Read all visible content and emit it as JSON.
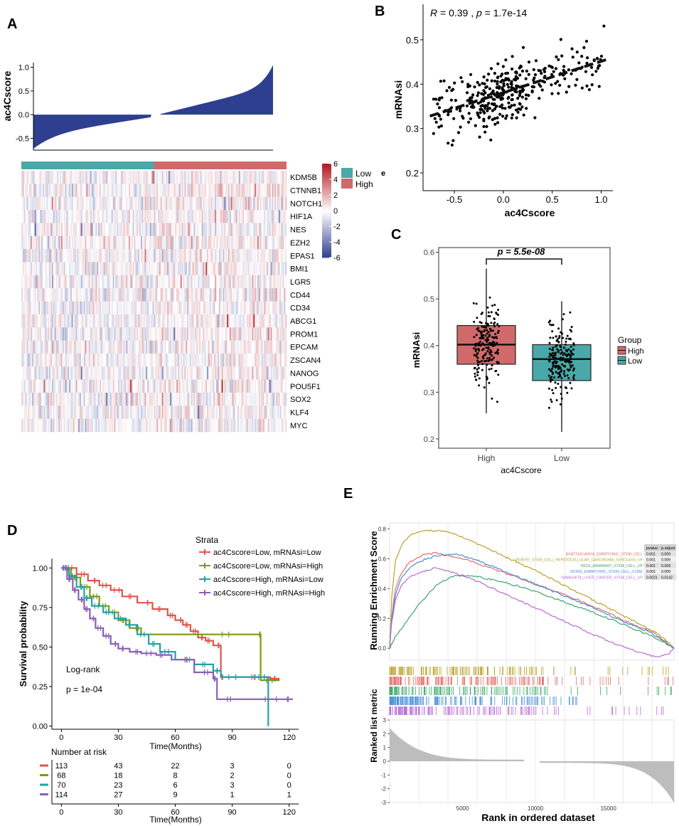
{
  "panel_labels": {
    "a": "A",
    "b": "B",
    "c": "C",
    "d": "D",
    "e": "E"
  },
  "chart_data": [
    {
      "panel": "A-top",
      "type": "bar",
      "ylabel": "ac4Cscore",
      "ylim": [
        -0.75,
        1.1
      ],
      "yticks": [
        "1.0",
        "0.5",
        "0.0",
        "-0.5"
      ],
      "sorted_profile": {
        "n_samples": 380,
        "min": -0.72,
        "max": 1.05,
        "zero_crossing_fraction": 0.52
      },
      "color": "#2e3f8f"
    },
    {
      "panel": "A-heatmap",
      "type": "heatmap",
      "genes": [
        "KDM5B",
        "CTNNB1",
        "NOTCH1",
        "HIF1A",
        "NES",
        "EZH2",
        "EPAS1",
        "BMI1",
        "LGR5",
        "CD44",
        "CD34",
        "ABCG1",
        "PROM1",
        "EPCAM",
        "ZSCAN4",
        "NANOG",
        "POU5F1",
        "SOX2",
        "KLF4",
        "MYC"
      ],
      "groups": [
        {
          "name": "Low",
          "color": "#4aa8a8",
          "fraction": 0.5
        },
        {
          "name": "High",
          "color": "#d06a6a",
          "fraction": 0.5
        }
      ],
      "colorbar_ticks": [
        "6",
        "4",
        "2",
        "0",
        "-2",
        "-4",
        "-6"
      ],
      "colorbar_range": [
        -6,
        6
      ],
      "colors": {
        "low": "#2d3d8f",
        "mid": "#ffffff",
        "high": "#b51a22"
      },
      "stray_label": "e"
    },
    {
      "panel": "B",
      "type": "scatter",
      "annotation": {
        "R": "R",
        "r_text": " = 0.39 ,  ",
        "p": "p",
        "p_text": " = 1.7e-14"
      },
      "xlabel": "ac4Cscore",
      "ylabel": "mRNAsi",
      "xlim": [
        -0.82,
        1.12
      ],
      "ylim": [
        0.16,
        0.58
      ],
      "xticks": [
        -0.5,
        0.0,
        0.5,
        1.0
      ],
      "xtick_labels": [
        "-0.5",
        "0.0",
        "0.5",
        "1.0"
      ],
      "yticks": [
        0.2,
        0.3,
        0.4,
        0.5
      ],
      "ytick_labels": [
        "0.2",
        "0.3",
        "0.4",
        "0.5"
      ],
      "fit_line": {
        "x": [
          -0.75,
          1.05
        ],
        "y": [
          0.328,
          0.455
        ]
      },
      "n_points": 360
    },
    {
      "panel": "C",
      "type": "box",
      "p_label": "p = 5.5e-08",
      "xlabel": "ac4Cscore",
      "ylabel": "mRNAsi",
      "ylim": [
        0.18,
        0.61
      ],
      "yticks": [
        0.2,
        0.3,
        0.4,
        0.5,
        0.6
      ],
      "ytick_labels": [
        "0.2",
        "0.3",
        "0.4",
        "0.5",
        "0.6"
      ],
      "legend_title": "Group",
      "groups": [
        {
          "name": "High",
          "color": "#d06a6a",
          "q1": 0.36,
          "median": 0.402,
          "q3": 0.443,
          "whisker_low": 0.255,
          "whisker_high": 0.565,
          "n": 190
        },
        {
          "name": "Low",
          "color": "#4aa8a8",
          "q1": 0.325,
          "median": 0.371,
          "q3": 0.402,
          "whisker_low": 0.215,
          "whisker_high": 0.495,
          "n": 190
        }
      ]
    },
    {
      "panel": "D",
      "type": "line",
      "subtype": "kaplan-meier",
      "xlabel": "Time(Months)",
      "ylabel": "Survival probability",
      "xlim": [
        -5,
        125
      ],
      "ylim": [
        -0.02,
        1.06
      ],
      "xticks": [
        0,
        30,
        60,
        90,
        120
      ],
      "xtick_labels": [
        "0",
        "30",
        "60",
        "90",
        "120"
      ],
      "yticks": [
        0,
        0.25,
        0.5,
        0.75,
        1.0
      ],
      "ytick_labels": [
        "0.00",
        "0.25",
        "0.50",
        "0.75",
        "1.00"
      ],
      "legend_title": "Strata",
      "logrank_label": "Log-rank",
      "pvalue_label": "p = 1e-04",
      "series": [
        {
          "name": "ac4Cscore=Low, mRNAsi=Low",
          "color": "#e0544b",
          "x": [
            0,
            8,
            14,
            20,
            26,
            32,
            40,
            48,
            56,
            60,
            64,
            68,
            72,
            76,
            80,
            84,
            86,
            110,
            115
          ],
          "y": [
            1.0,
            0.96,
            0.92,
            0.89,
            0.86,
            0.82,
            0.78,
            0.74,
            0.7,
            0.67,
            0.64,
            0.6,
            0.56,
            0.54,
            0.51,
            0.31,
            0.31,
            0.3,
            0.3
          ]
        },
        {
          "name": "ac4Cscore=Low, mRNAsi=High",
          "color": "#7b9a13",
          "x": [
            0,
            5,
            10,
            15,
            20,
            25,
            30,
            36,
            42,
            104,
            105,
            115
          ],
          "y": [
            1.0,
            0.94,
            0.88,
            0.82,
            0.76,
            0.72,
            0.67,
            0.62,
            0.58,
            0.58,
            0.29,
            0.29
          ]
        },
        {
          "name": "ac4Cscore=High, mRNAsi=Low",
          "color": "#1fa3a8",
          "x": [
            0,
            4,
            8,
            12,
            16,
            22,
            28,
            34,
            40,
            46,
            52,
            60,
            70,
            80,
            84,
            100,
            106,
            109
          ],
          "y": [
            1.0,
            0.95,
            0.88,
            0.81,
            0.76,
            0.72,
            0.68,
            0.64,
            0.58,
            0.52,
            0.47,
            0.42,
            0.39,
            0.35,
            0.31,
            0.31,
            0.31,
            0.0
          ]
        },
        {
          "name": "ac4Cscore=High, mRNAsi=High",
          "color": "#8b5fb8",
          "x": [
            0,
            3,
            6,
            9,
            12,
            15,
            18,
            22,
            26,
            30,
            36,
            42,
            50,
            58,
            70,
            80,
            82,
            100,
            118,
            122
          ],
          "y": [
            1.0,
            0.93,
            0.86,
            0.8,
            0.74,
            0.68,
            0.62,
            0.57,
            0.52,
            0.49,
            0.47,
            0.46,
            0.45,
            0.42,
            0.34,
            0.3,
            0.17,
            0.17,
            0.17,
            0.17
          ]
        }
      ],
      "risk_table": {
        "title": "Number at risk",
        "xlabel": "Time(Months)",
        "times": [
          "0",
          "30",
          "60",
          "90",
          "120"
        ],
        "rows": [
          {
            "color": "#e0544b",
            "values": [
              "113",
              "43",
              "22",
              "3",
              "0"
            ]
          },
          {
            "color": "#7b9a13",
            "values": [
              "68",
              "18",
              "8",
              "2",
              "0"
            ]
          },
          {
            "color": "#1fa3a8",
            "values": [
              "70",
              "23",
              "6",
              "3",
              "0"
            ]
          },
          {
            "color": "#8b5fb8",
            "values": [
              "114",
              "27",
              "9",
              "1",
              "1"
            ]
          }
        ]
      }
    },
    {
      "panel": "E",
      "type": "line",
      "subtype": "gsea",
      "ylabel": "Running Enrichment Score",
      "ylabel2": "Ranked list metric",
      "xlabel": "Rank in ordered dataset",
      "xlim": [
        0,
        19500
      ],
      "xticks": [
        5000,
        10000,
        15000
      ],
      "xtick_labels": [
        "5000",
        "10000",
        "15000"
      ],
      "ylim": [
        -0.08,
        0.84
      ],
      "yticks": [
        0.0,
        0.2,
        0.4,
        0.6,
        0.8
      ],
      "ytick_labels": [
        "0.0",
        "0.2",
        "0.4",
        "0.6",
        "0.8"
      ],
      "ylim2": [
        -3,
        3
      ],
      "yticks2": [
        3,
        2,
        1,
        0,
        -1,
        -2,
        -3
      ],
      "ytick_labels2": [
        "3",
        "2",
        "1",
        "0",
        "-1",
        "-2",
        "-3"
      ],
      "table_header": [
        "pvalue",
        "p.adjust"
      ],
      "series": [
        {
          "name": "BHATTACHARYA_EMBRYONIC_STEM_CELL",
          "color": "#e06d6d",
          "pvalue": "0.001",
          "padjust": "0.009",
          "x": [
            0,
            150,
            400,
            800,
            1300,
            1900,
            2500,
            3200,
            4000,
            4600,
            6000,
            8000,
            10000,
            12000,
            14000,
            16000,
            18000,
            19000,
            19500
          ],
          "y": [
            0.0,
            0.22,
            0.4,
            0.5,
            0.57,
            0.61,
            0.63,
            0.64,
            0.62,
            0.61,
            0.57,
            0.5,
            0.43,
            0.36,
            0.28,
            0.19,
            0.11,
            0.04,
            0.0
          ]
        },
        {
          "name": "DESERT_STEM_CELL_HEPATOCELLULAR_CARCINOMA_SUBCLASS_UP",
          "color": "#b8a32a",
          "pvalue": "0.001",
          "padjust": "0.009",
          "x": [
            0,
            150,
            400,
            800,
            1300,
            1900,
            2500,
            3200,
            4000,
            4600,
            6000,
            8000,
            10000,
            12000,
            14000,
            16000,
            18000,
            19000,
            19500
          ],
          "y": [
            0.0,
            0.35,
            0.58,
            0.69,
            0.75,
            0.78,
            0.79,
            0.79,
            0.78,
            0.76,
            0.7,
            0.61,
            0.52,
            0.42,
            0.32,
            0.22,
            0.12,
            0.05,
            0.0
          ]
        },
        {
          "name": "PECE_MAMMARY_STEM_CELL_UP",
          "color": "#3aa86a",
          "pvalue": "0.001",
          "padjust": "0.009",
          "x": [
            0,
            150,
            400,
            800,
            1300,
            1900,
            2500,
            3200,
            4000,
            4600,
            6000,
            8000,
            10000,
            12000,
            14000,
            16000,
            18000,
            19000,
            19500
          ],
          "y": [
            0.0,
            0.03,
            0.08,
            0.13,
            0.2,
            0.28,
            0.35,
            0.42,
            0.47,
            0.49,
            0.48,
            0.44,
            0.38,
            0.31,
            0.24,
            0.16,
            0.08,
            0.03,
            0.0
          ]
        },
        {
          "name": "WONG_EMBRYONIC_STEM_CELL_CORE",
          "color": "#4a8fd6",
          "pvalue": "0.001",
          "padjust": "0.009",
          "x": [
            0,
            150,
            400,
            800,
            1300,
            1900,
            2500,
            3200,
            4000,
            4600,
            6000,
            8000,
            10000,
            12000,
            14000,
            16000,
            18000,
            19000,
            19500
          ],
          "y": [
            0.0,
            0.2,
            0.36,
            0.47,
            0.53,
            0.57,
            0.6,
            0.62,
            0.63,
            0.63,
            0.59,
            0.51,
            0.43,
            0.35,
            0.27,
            0.18,
            0.1,
            0.03,
            0.0
          ]
        },
        {
          "name": "YAMASHITA_LIVER_CANCER_STEM_CELL_UP",
          "color": "#b76ad6",
          "pvalue": "0.0021",
          "padjust": "0.0142",
          "x": [
            0,
            150,
            400,
            800,
            1300,
            1900,
            2500,
            3200,
            4000,
            4600,
            6000,
            8000,
            10000,
            12000,
            14000,
            16000,
            17500,
            18300,
            18800,
            19200,
            19500
          ],
          "y": [
            0.0,
            0.18,
            0.32,
            0.42,
            0.47,
            0.5,
            0.52,
            0.54,
            0.52,
            0.5,
            0.45,
            0.36,
            0.27,
            0.18,
            0.09,
            0.01,
            -0.04,
            -0.06,
            -0.05,
            -0.03,
            0.0
          ]
        }
      ]
    }
  ]
}
